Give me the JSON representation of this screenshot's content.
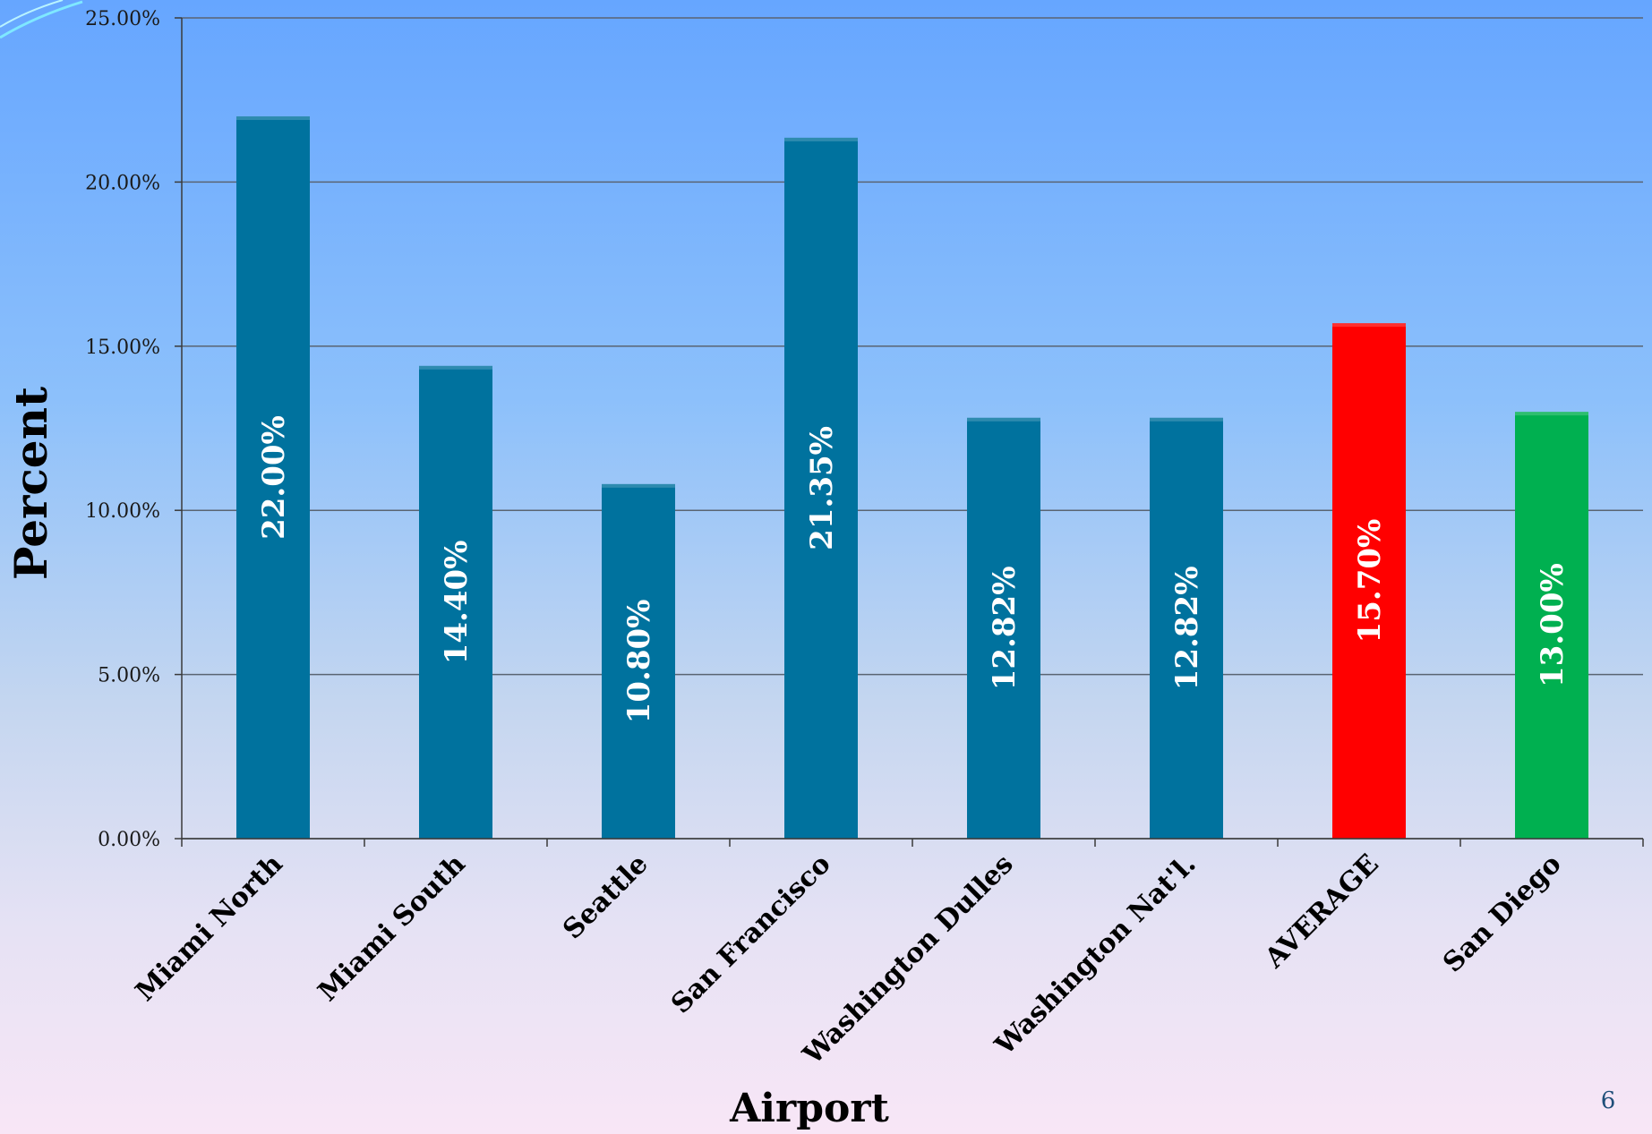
{
  "chart_data": {
    "type": "bar",
    "title": "",
    "xlabel": "Airport",
    "ylabel": "Percent",
    "ylim": [
      0,
      25
    ],
    "yticks": [
      "0.00%",
      "5.00%",
      "10.00%",
      "15.00%",
      "20.00%",
      "25.00%"
    ],
    "grid": true,
    "categories": [
      "Miami North",
      "Miami South",
      "Seattle",
      "San Francisco",
      "Washington Dulles",
      "Washington Nat'l.",
      "AVERAGE",
      "San Diego"
    ],
    "values": [
      22.0,
      14.4,
      10.8,
      21.35,
      12.82,
      12.82,
      15.7,
      13.0
    ],
    "data_labels": [
      "22.00%",
      "14.40%",
      "10.80%",
      "21.35%",
      "12.82%",
      "12.82%",
      "15.70%",
      "13.00%"
    ],
    "colors": [
      "#00729e",
      "#00729e",
      "#00729e",
      "#00729e",
      "#00729e",
      "#00729e",
      "#ff0000",
      "#00b050"
    ]
  },
  "slide": {
    "page_number": "6"
  }
}
